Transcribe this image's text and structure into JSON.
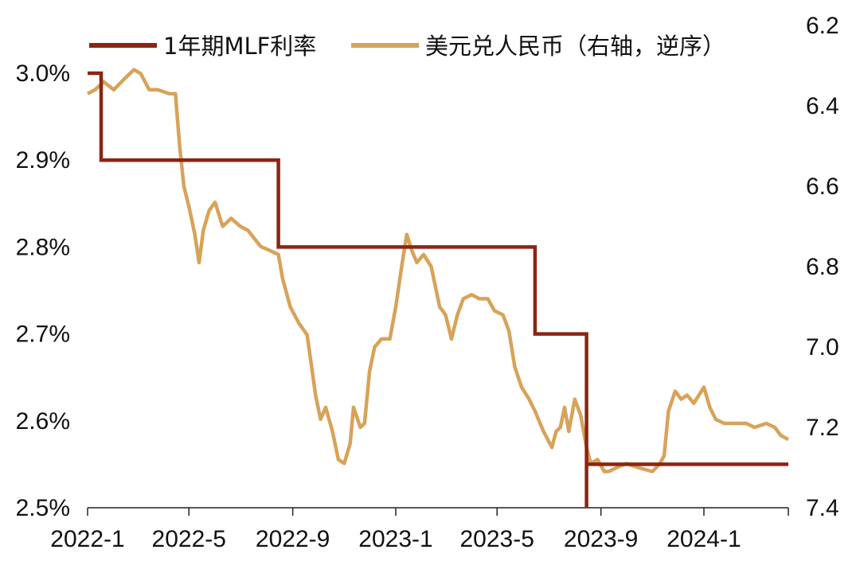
{
  "chart_data": {
    "type": "line",
    "title": "",
    "legend": {
      "placement": "top"
    },
    "x_axis": {
      "type": "date",
      "range": [
        "2022-01-01",
        "2024-04-10"
      ],
      "ticks": [
        {
          "date": "2022-01-01",
          "label": "2022-1"
        },
        {
          "date": "2022-05-01",
          "label": "2022-5"
        },
        {
          "date": "2022-09-01",
          "label": "2022-9"
        },
        {
          "date": "2023-01-01",
          "label": "2023-1"
        },
        {
          "date": "2023-05-01",
          "label": "2023-5"
        },
        {
          "date": "2023-09-01",
          "label": "2023-9"
        },
        {
          "date": "2024-01-01",
          "label": "2024-1"
        }
      ]
    },
    "y_left": {
      "range": [
        2.5,
        3.0
      ],
      "ticks": [
        {
          "value": 2.5,
          "label": "2.5%"
        },
        {
          "value": 2.6,
          "label": "2.6%"
        },
        {
          "value": 2.7,
          "label": "2.7%"
        },
        {
          "value": 2.8,
          "label": "2.8%"
        },
        {
          "value": 2.9,
          "label": "2.9%"
        },
        {
          "value": 3.0,
          "label": "3.0%"
        }
      ]
    },
    "y_right": {
      "range": [
        6.2,
        7.4
      ],
      "inverted": true,
      "ticks": [
        {
          "value": 6.2,
          "label": "6.2"
        },
        {
          "value": 6.4,
          "label": "6.4"
        },
        {
          "value": 6.6,
          "label": "6.6"
        },
        {
          "value": 6.8,
          "label": "6.8"
        },
        {
          "value": 7.0,
          "label": "7.0"
        },
        {
          "value": 7.2,
          "label": "7.2"
        },
        {
          "value": 7.4,
          "label": "7.4"
        }
      ]
    },
    "grid": false,
    "series": [
      {
        "name": "1年期MLF利率",
        "axis": "left",
        "color": "#8B2511",
        "step": true,
        "points": [
          [
            "2022-01-01",
            3.0
          ],
          [
            "2022-01-17",
            2.9
          ],
          [
            "2022-08-15",
            2.8
          ],
          [
            "2023-06-15",
            2.7
          ],
          [
            "2023-08-15",
            2.5
          ],
          [
            "2023-08-15",
            2.55
          ],
          [
            "2024-04-10",
            2.55
          ]
        ]
      },
      {
        "name": "美元兑人民币（右轴，逆序）",
        "axis": "right",
        "color": "#D7A35A",
        "points": [
          [
            "2022-01-01",
            6.37
          ],
          [
            "2022-01-10",
            6.36
          ],
          [
            "2022-01-20",
            6.34
          ],
          [
            "2022-02-01",
            6.36
          ],
          [
            "2022-02-15",
            6.33
          ],
          [
            "2022-02-25",
            6.31
          ],
          [
            "2022-03-05",
            6.32
          ],
          [
            "2022-03-15",
            6.36
          ],
          [
            "2022-03-25",
            6.36
          ],
          [
            "2022-04-08",
            6.37
          ],
          [
            "2022-04-15",
            6.37
          ],
          [
            "2022-04-20",
            6.5
          ],
          [
            "2022-04-25",
            6.6
          ],
          [
            "2022-05-01",
            6.65
          ],
          [
            "2022-05-08",
            6.72
          ],
          [
            "2022-05-13",
            6.79
          ],
          [
            "2022-05-18",
            6.71
          ],
          [
            "2022-05-25",
            6.66
          ],
          [
            "2022-06-01",
            6.64
          ],
          [
            "2022-06-10",
            6.7
          ],
          [
            "2022-06-20",
            6.68
          ],
          [
            "2022-07-01",
            6.7
          ],
          [
            "2022-07-10",
            6.71
          ],
          [
            "2022-07-25",
            6.75
          ],
          [
            "2022-08-05",
            6.76
          ],
          [
            "2022-08-15",
            6.77
          ],
          [
            "2022-08-20",
            6.83
          ],
          [
            "2022-08-29",
            6.9
          ],
          [
            "2022-09-08",
            6.94
          ],
          [
            "2022-09-18",
            6.97
          ],
          [
            "2022-09-28",
            7.12
          ],
          [
            "2022-10-04",
            7.18
          ],
          [
            "2022-10-10",
            7.15
          ],
          [
            "2022-10-18",
            7.21
          ],
          [
            "2022-10-25",
            7.28
          ],
          [
            "2022-11-01",
            7.29
          ],
          [
            "2022-11-08",
            7.24
          ],
          [
            "2022-11-12",
            7.15
          ],
          [
            "2022-11-20",
            7.2
          ],
          [
            "2022-11-25",
            7.19
          ],
          [
            "2022-12-01",
            7.06
          ],
          [
            "2022-12-07",
            7.0
          ],
          [
            "2022-12-15",
            6.98
          ],
          [
            "2022-12-25",
            6.98
          ],
          [
            "2023-01-01",
            6.9
          ],
          [
            "2023-01-08",
            6.8
          ],
          [
            "2023-01-14",
            6.72
          ],
          [
            "2023-01-20",
            6.76
          ],
          [
            "2023-01-26",
            6.79
          ],
          [
            "2023-02-03",
            6.77
          ],
          [
            "2023-02-12",
            6.8
          ],
          [
            "2023-02-22",
            6.9
          ],
          [
            "2023-03-01",
            6.92
          ],
          [
            "2023-03-08",
            6.98
          ],
          [
            "2023-03-15",
            6.92
          ],
          [
            "2023-03-22",
            6.88
          ],
          [
            "2023-04-01",
            6.87
          ],
          [
            "2023-04-10",
            6.88
          ],
          [
            "2023-04-20",
            6.88
          ],
          [
            "2023-04-28",
            6.91
          ],
          [
            "2023-05-08",
            6.92
          ],
          [
            "2023-05-15",
            6.96
          ],
          [
            "2023-05-22",
            7.05
          ],
          [
            "2023-05-30",
            7.1
          ],
          [
            "2023-06-08",
            7.13
          ],
          [
            "2023-06-15",
            7.16
          ],
          [
            "2023-06-25",
            7.21
          ],
          [
            "2023-07-05",
            7.25
          ],
          [
            "2023-07-10",
            7.21
          ],
          [
            "2023-07-15",
            7.2
          ],
          [
            "2023-07-20",
            7.15
          ],
          [
            "2023-07-25",
            7.21
          ],
          [
            "2023-08-01",
            7.13
          ],
          [
            "2023-08-08",
            7.17
          ],
          [
            "2023-08-15",
            7.25
          ],
          [
            "2023-08-20",
            7.29
          ],
          [
            "2023-08-28",
            7.28
          ],
          [
            "2023-09-05",
            7.31
          ],
          [
            "2023-09-10",
            7.31
          ],
          [
            "2023-09-20",
            7.3
          ],
          [
            "2023-10-01",
            7.29
          ],
          [
            "2023-10-15",
            7.3
          ],
          [
            "2023-11-01",
            7.31
          ],
          [
            "2023-11-10",
            7.29
          ],
          [
            "2023-11-15",
            7.27
          ],
          [
            "2023-11-20",
            7.16
          ],
          [
            "2023-11-28",
            7.11
          ],
          [
            "2023-12-05",
            7.13
          ],
          [
            "2023-12-12",
            7.12
          ],
          [
            "2023-12-20",
            7.14
          ],
          [
            "2024-01-01",
            7.1
          ],
          [
            "2024-01-08",
            7.15
          ],
          [
            "2024-01-15",
            7.18
          ],
          [
            "2024-01-25",
            7.19
          ],
          [
            "2024-02-05",
            7.19
          ],
          [
            "2024-02-20",
            7.19
          ],
          [
            "2024-03-01",
            7.2
          ],
          [
            "2024-03-15",
            7.19
          ],
          [
            "2024-03-25",
            7.2
          ],
          [
            "2024-04-01",
            7.22
          ],
          [
            "2024-04-10",
            7.23
          ]
        ]
      }
    ]
  }
}
